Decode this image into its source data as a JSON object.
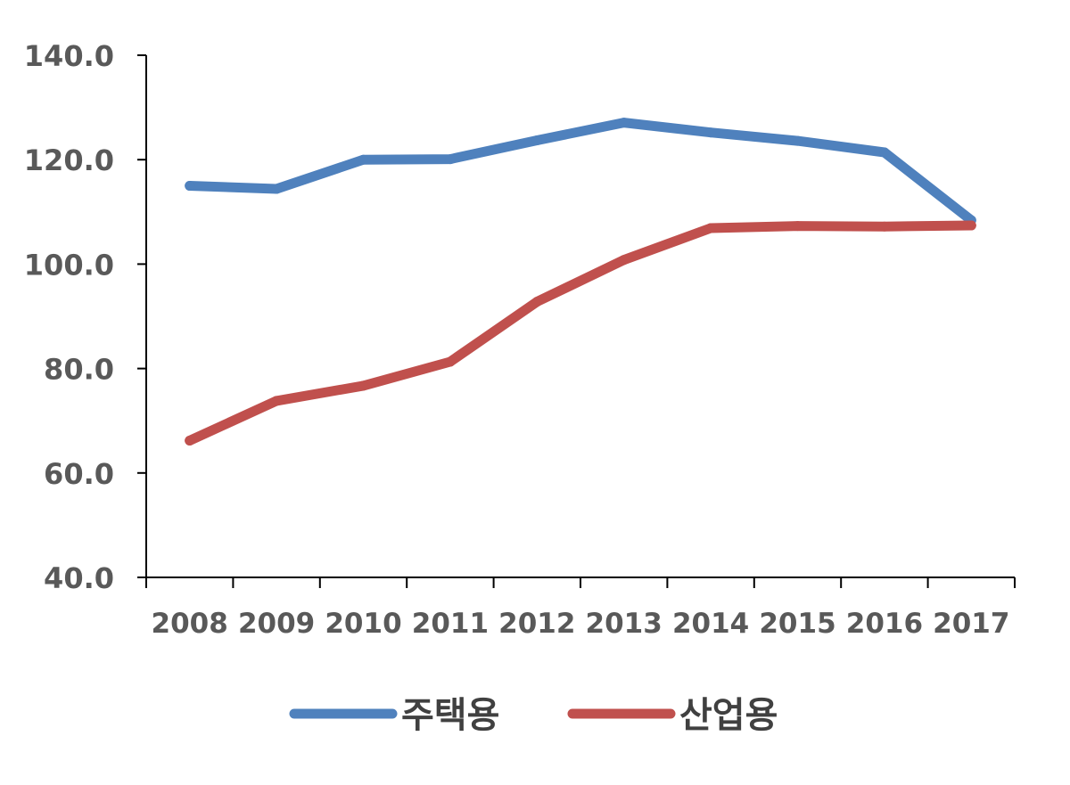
{
  "chart_data": {
    "type": "line",
    "title": "",
    "xlabel": "",
    "ylabel": "",
    "categories": [
      "2008",
      "2009",
      "2010",
      "2011",
      "2012",
      "2013",
      "2014",
      "2015",
      "2016",
      "2017"
    ],
    "ylim": [
      40,
      140
    ],
    "y_ticks": [
      "40.0",
      "60.0",
      "80.0",
      "100.0",
      "120.0",
      "140.0"
    ],
    "grid": false,
    "legend_position": "bottom",
    "series": [
      {
        "name": "주택용",
        "color": "#4F81BD",
        "values": [
          115.0,
          114.4,
          120.0,
          120.1,
          123.7,
          127.1,
          125.2,
          123.6,
          121.4,
          108.4
        ]
      },
      {
        "name": "산업용",
        "color": "#C0504D",
        "values": [
          66.2,
          73.8,
          76.7,
          81.3,
          92.8,
          100.8,
          106.9,
          107.3,
          107.2,
          107.4
        ]
      }
    ]
  }
}
